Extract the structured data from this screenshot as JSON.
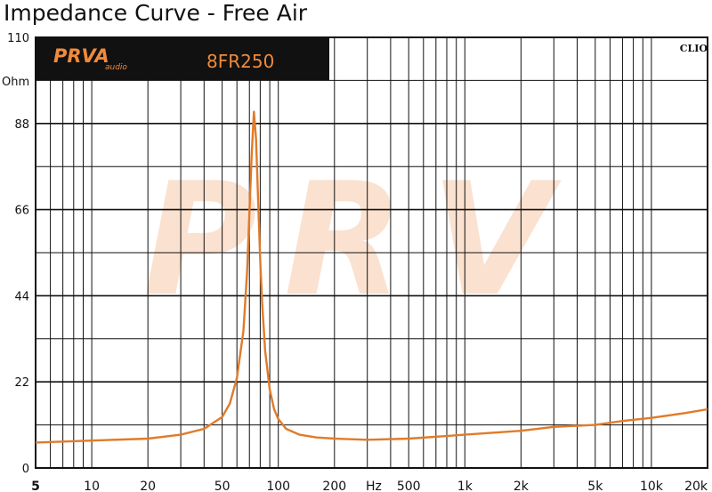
{
  "chart_data": {
    "type": "line",
    "title": "Impedance Curve - Free Air",
    "y_unit": "Ohm",
    "x_unit": "Hz",
    "x_scale": "log",
    "xlim": [
      5,
      20000
    ],
    "ylim": [
      0,
      110
    ],
    "y_ticks": [
      0,
      22,
      44,
      66,
      88,
      110
    ],
    "x_tick_labels": [
      {
        "v": 5,
        "t": "5"
      },
      {
        "v": 10,
        "t": "10"
      },
      {
        "v": 20,
        "t": "20"
      },
      {
        "v": 50,
        "t": "50"
      },
      {
        "v": 100,
        "t": "100"
      },
      {
        "v": 200,
        "t": "200"
      },
      {
        "v": 500,
        "t": "500"
      },
      {
        "v": 1000,
        "t": "1k"
      },
      {
        "v": 2000,
        "t": "2k"
      },
      {
        "v": 5000,
        "t": "5k"
      },
      {
        "v": 10000,
        "t": "10k"
      },
      {
        "v": 20000,
        "t": "20k"
      }
    ],
    "grid": true,
    "series": [
      {
        "color": "#e07b2a",
        "x": [
          5,
          10,
          20,
          30,
          40,
          50,
          55,
          60,
          65,
          68,
          70,
          72,
          74,
          76,
          78,
          80,
          82,
          85,
          90,
          95,
          100,
          110,
          130,
          160,
          200,
          300,
          500,
          1000,
          2000,
          3000,
          5000,
          7000,
          10000,
          15000,
          20000
        ],
        "y": [
          6.5,
          7,
          7.5,
          8.5,
          10,
          13,
          16.5,
          23,
          35,
          50,
          65,
          80,
          91,
          84,
          68,
          53,
          42,
          30,
          20,
          15,
          12.5,
          10,
          8.5,
          7.8,
          7.5,
          7.2,
          7.5,
          8.5,
          9.5,
          10.5,
          11,
          12,
          12.8,
          14,
          15
        ]
      }
    ]
  },
  "header": {
    "brand_logo": "PRVA",
    "brand_sub": "audio",
    "model": "8FR250",
    "software": "CLIO"
  },
  "watermark": "PRV",
  "colors": {
    "curve": "#e07b2a",
    "logo": "#f08a3c",
    "watermark": "#fbe1cf",
    "header_bg": "#111111"
  }
}
